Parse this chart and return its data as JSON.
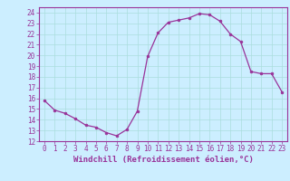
{
  "x": [
    0,
    1,
    2,
    3,
    4,
    5,
    6,
    7,
    8,
    9,
    10,
    11,
    12,
    13,
    14,
    15,
    16,
    17,
    18,
    19,
    20,
    21,
    22,
    23
  ],
  "y": [
    15.8,
    14.9,
    14.6,
    14.1,
    13.5,
    13.3,
    12.8,
    12.5,
    13.1,
    14.8,
    19.9,
    22.1,
    23.1,
    23.3,
    23.5,
    23.9,
    23.8,
    23.2,
    22.0,
    21.3,
    18.5,
    18.3,
    18.3,
    16.6
  ],
  "line_color": "#993399",
  "marker": "o",
  "marker_size": 2.0,
  "bg_color": "#cceeff",
  "grid_color": "#aadddd",
  "xlabel": "Windchill (Refroidissement éolien,°C)",
  "xlim": [
    -0.5,
    23.5
  ],
  "ylim": [
    12,
    24.5
  ],
  "yticks": [
    12,
    13,
    14,
    15,
    16,
    17,
    18,
    19,
    20,
    21,
    22,
    23,
    24
  ],
  "xticks": [
    0,
    1,
    2,
    3,
    4,
    5,
    6,
    7,
    8,
    9,
    10,
    11,
    12,
    13,
    14,
    15,
    16,
    17,
    18,
    19,
    20,
    21,
    22,
    23
  ],
  "tick_fontsize": 5.5,
  "label_fontsize": 6.5
}
